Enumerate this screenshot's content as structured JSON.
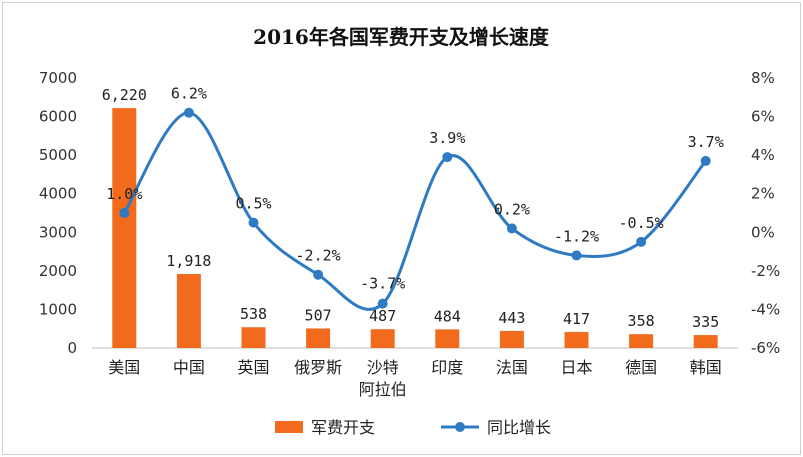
{
  "chart_data": {
    "type": "bar",
    "title": "2016年各国军费开支及增长速度",
    "categories": [
      "美国",
      "中国",
      "英国",
      "俄罗斯",
      "沙特阿拉伯",
      "印度",
      "法国",
      "日本",
      "德国",
      "韩国"
    ],
    "category_lines": [
      [
        "美国"
      ],
      [
        "中国"
      ],
      [
        "英国"
      ],
      [
        "俄罗斯"
      ],
      [
        "沙特",
        "阿拉伯"
      ],
      [
        "印度"
      ],
      [
        "法国"
      ],
      [
        "日本"
      ],
      [
        "德国"
      ],
      [
        "韩国"
      ]
    ],
    "series": [
      {
        "name": "军费开支",
        "type": "bar",
        "axis": "left",
        "color": "#F26B1D",
        "values": [
          6220,
          1918,
          538,
          507,
          487,
          484,
          443,
          417,
          358,
          335
        ],
        "labels": [
          "6,220",
          "1,918",
          "538",
          "507",
          "487",
          "484",
          "443",
          "417",
          "358",
          "335"
        ]
      },
      {
        "name": "同比增长",
        "type": "line",
        "axis": "right",
        "color": "#2E7BC4",
        "values": [
          1.0,
          6.2,
          0.5,
          -2.2,
          -3.7,
          3.9,
          0.2,
          -1.2,
          -0.5,
          3.7
        ],
        "labels": [
          "1.0%",
          "6.2%",
          "0.5%",
          "-2.2%",
          "-3.7%",
          "3.9%",
          "0.2%",
          "-1.2%",
          "-0.5%",
          "3.7%"
        ]
      }
    ],
    "y_left": {
      "range": [
        0,
        7000
      ],
      "ticks": [
        "0",
        "1000",
        "2000",
        "3000",
        "4000",
        "5000",
        "6000",
        "7000"
      ]
    },
    "y_right": {
      "range": [
        -6,
        8
      ],
      "ticks": [
        "-6%",
        "-4%",
        "-2%",
        "0%",
        "2%",
        "4%",
        "6%",
        "8%"
      ]
    },
    "grid": false,
    "legend_position": "bottom"
  }
}
